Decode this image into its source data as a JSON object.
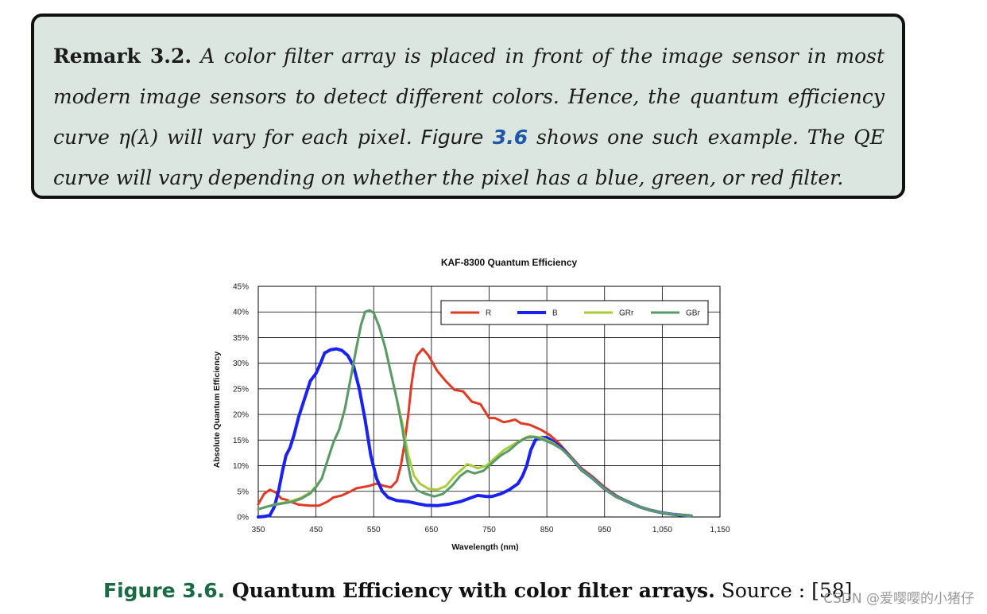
{
  "remark": {
    "label": "Remark 3.2.",
    "text_1": " A color filter array is placed in front of the image sensor in most modern image sensors to detect different colors. Hence, the quantum efficiency curve η(λ) will vary for each pixel. ",
    "figure_word": "Figure",
    "figure_num": " 3.6",
    "text_2": " shows one such example. The QE curve will vary depending on whether the pixel has a blue, green, or red filter."
  },
  "caption": {
    "label": "Figure 3.6.",
    "title": " Quantum Efficiency with color filter arrays.",
    "source": " Source : ",
    "ref": "[58]"
  },
  "watermark": "CSDN @爱嘤嘤的小猪仔",
  "chart_data": {
    "type": "line",
    "title": "KAF-8300 Quantum Efficiency",
    "xlabel": "Wavelength (nm)",
    "ylabel": "Absolute Quantum Efficiency",
    "xlim": [
      350,
      1150
    ],
    "ylim": [
      0,
      45
    ],
    "x_ticks": [
      "350",
      "450",
      "550",
      "650",
      "750",
      "850",
      "950",
      "1,050",
      "1,150"
    ],
    "y_ticks": [
      "0%",
      "5%",
      "10%",
      "15%",
      "20%",
      "25%",
      "30%",
      "35%",
      "40%",
      "45%"
    ],
    "grid": true,
    "legend_position": "top-right",
    "series": [
      {
        "name": "R",
        "color": "#e03a24",
        "points": [
          [
            350,
            2.5
          ],
          [
            360,
            4.5
          ],
          [
            370,
            5.3
          ],
          [
            380,
            4.8
          ],
          [
            390,
            3.6
          ],
          [
            400,
            3.3
          ],
          [
            410,
            2.8
          ],
          [
            420,
            2.4
          ],
          [
            440,
            2.2
          ],
          [
            455,
            2.2
          ],
          [
            470,
            3.0
          ],
          [
            480,
            3.8
          ],
          [
            495,
            4.2
          ],
          [
            510,
            5.0
          ],
          [
            520,
            5.6
          ],
          [
            540,
            6.0
          ],
          [
            555,
            6.5
          ],
          [
            570,
            6.0
          ],
          [
            580,
            5.8
          ],
          [
            590,
            7.0
          ],
          [
            597,
            10.0
          ],
          [
            603,
            14.0
          ],
          [
            610,
            20.0
          ],
          [
            615,
            25.5
          ],
          [
            620,
            29.5
          ],
          [
            625,
            31.5
          ],
          [
            635,
            32.8
          ],
          [
            645,
            31.5
          ],
          [
            660,
            28.5
          ],
          [
            675,
            26.5
          ],
          [
            690,
            24.8
          ],
          [
            705,
            24.5
          ],
          [
            720,
            22.5
          ],
          [
            735,
            22.0
          ],
          [
            750,
            19.3
          ],
          [
            760,
            19.3
          ],
          [
            775,
            18.5
          ],
          [
            785,
            18.7
          ],
          [
            795,
            19.0
          ],
          [
            805,
            18.3
          ],
          [
            820,
            18.0
          ],
          [
            840,
            17.0
          ],
          [
            855,
            16.0
          ],
          [
            870,
            14.5
          ],
          [
            890,
            12.0
          ],
          [
            910,
            9.5
          ],
          [
            930,
            7.8
          ],
          [
            950,
            5.8
          ],
          [
            970,
            4.2
          ],
          [
            990,
            3.0
          ],
          [
            1010,
            2.0
          ],
          [
            1030,
            1.3
          ],
          [
            1050,
            0.8
          ],
          [
            1070,
            0.5
          ],
          [
            1090,
            0.3
          ],
          [
            1100,
            0.2
          ]
        ]
      },
      {
        "name": "B",
        "color": "#1a22ef",
        "points": [
          [
            350,
            0.0
          ],
          [
            360,
            0.1
          ],
          [
            370,
            0.3
          ],
          [
            378,
            2.0
          ],
          [
            385,
            5.0
          ],
          [
            392,
            9.0
          ],
          [
            398,
            12.0
          ],
          [
            405,
            13.5
          ],
          [
            412,
            16.0
          ],
          [
            420,
            19.5
          ],
          [
            430,
            23.0
          ],
          [
            440,
            26.5
          ],
          [
            450,
            28.0
          ],
          [
            458,
            30.0
          ],
          [
            465,
            32.0
          ],
          [
            475,
            32.6
          ],
          [
            485,
            32.8
          ],
          [
            495,
            32.5
          ],
          [
            505,
            31.5
          ],
          [
            515,
            29.5
          ],
          [
            525,
            25.0
          ],
          [
            535,
            19.0
          ],
          [
            545,
            12.0
          ],
          [
            555,
            7.5
          ],
          [
            565,
            5.0
          ],
          [
            575,
            3.8
          ],
          [
            590,
            3.2
          ],
          [
            610,
            3.0
          ],
          [
            625,
            2.6
          ],
          [
            640,
            2.3
          ],
          [
            660,
            2.2
          ],
          [
            680,
            2.5
          ],
          [
            700,
            3.0
          ],
          [
            715,
            3.6
          ],
          [
            730,
            4.2
          ],
          [
            745,
            4.0
          ],
          [
            755,
            4.0
          ],
          [
            770,
            4.5
          ],
          [
            785,
            5.3
          ],
          [
            800,
            6.5
          ],
          [
            808,
            8.0
          ],
          [
            815,
            10.0
          ],
          [
            822,
            13.0
          ],
          [
            830,
            15.0
          ],
          [
            840,
            15.5
          ],
          [
            850,
            15.5
          ],
          [
            860,
            14.8
          ],
          [
            875,
            13.5
          ],
          [
            890,
            11.8
          ],
          [
            910,
            9.2
          ],
          [
            930,
            7.5
          ],
          [
            950,
            5.5
          ],
          [
            970,
            4.0
          ],
          [
            990,
            3.0
          ],
          [
            1010,
            2.0
          ],
          [
            1030,
            1.3
          ],
          [
            1050,
            0.8
          ],
          [
            1070,
            0.5
          ],
          [
            1090,
            0.3
          ],
          [
            1100,
            0.2
          ]
        ]
      },
      {
        "name": "GRr",
        "color": "#a8cc3c",
        "points": [
          [
            350,
            1.5
          ],
          [
            365,
            2.0
          ],
          [
            380,
            2.5
          ],
          [
            395,
            2.8
          ],
          [
            410,
            3.2
          ],
          [
            425,
            3.8
          ],
          [
            440,
            4.8
          ],
          [
            450,
            6.0
          ],
          [
            460,
            7.5
          ],
          [
            470,
            11.0
          ],
          [
            480,
            14.5
          ],
          [
            490,
            17.0
          ],
          [
            500,
            21.0
          ],
          [
            510,
            27.0
          ],
          [
            520,
            33.0
          ],
          [
            528,
            37.5
          ],
          [
            535,
            40.0
          ],
          [
            543,
            40.3
          ],
          [
            550,
            39.8
          ],
          [
            560,
            37.0
          ],
          [
            570,
            33.0
          ],
          [
            580,
            28.0
          ],
          [
            590,
            23.0
          ],
          [
            600,
            18.0
          ],
          [
            610,
            12.0
          ],
          [
            620,
            8.0
          ],
          [
            630,
            6.5
          ],
          [
            645,
            5.5
          ],
          [
            660,
            5.3
          ],
          [
            675,
            6.0
          ],
          [
            690,
            8.0
          ],
          [
            705,
            9.5
          ],
          [
            712,
            10.3
          ],
          [
            720,
            10.0
          ],
          [
            730,
            9.5
          ],
          [
            745,
            10.0
          ],
          [
            760,
            11.5
          ],
          [
            775,
            13.0
          ],
          [
            790,
            14.0
          ],
          [
            805,
            15.0
          ],
          [
            820,
            15.8
          ],
          [
            840,
            15.5
          ],
          [
            860,
            14.5
          ],
          [
            875,
            13.3
          ],
          [
            890,
            11.8
          ],
          [
            910,
            9.2
          ],
          [
            930,
            7.5
          ],
          [
            950,
            5.5
          ],
          [
            970,
            4.0
          ],
          [
            990,
            3.0
          ],
          [
            1010,
            2.0
          ],
          [
            1030,
            1.3
          ],
          [
            1050,
            0.8
          ],
          [
            1070,
            0.5
          ],
          [
            1090,
            0.3
          ],
          [
            1100,
            0.2
          ]
        ]
      },
      {
        "name": "GBr",
        "color": "#5a9a6a",
        "points": [
          [
            350,
            1.5
          ],
          [
            365,
            2.0
          ],
          [
            380,
            2.4
          ],
          [
            395,
            2.7
          ],
          [
            410,
            3.0
          ],
          [
            425,
            3.6
          ],
          [
            440,
            4.6
          ],
          [
            450,
            5.8
          ],
          [
            460,
            7.5
          ],
          [
            470,
            11.0
          ],
          [
            480,
            14.5
          ],
          [
            490,
            17.0
          ],
          [
            500,
            21.0
          ],
          [
            510,
            27.0
          ],
          [
            520,
            33.0
          ],
          [
            528,
            37.5
          ],
          [
            535,
            40.0
          ],
          [
            543,
            40.3
          ],
          [
            550,
            39.8
          ],
          [
            560,
            37.0
          ],
          [
            570,
            33.0
          ],
          [
            580,
            28.0
          ],
          [
            590,
            23.0
          ],
          [
            600,
            17.0
          ],
          [
            608,
            11.0
          ],
          [
            615,
            7.0
          ],
          [
            625,
            5.2
          ],
          [
            640,
            4.5
          ],
          [
            655,
            4.0
          ],
          [
            670,
            4.5
          ],
          [
            685,
            6.0
          ],
          [
            700,
            8.0
          ],
          [
            712,
            9.0
          ],
          [
            725,
            8.5
          ],
          [
            740,
            9.0
          ],
          [
            755,
            10.5
          ],
          [
            770,
            12.0
          ],
          [
            785,
            13.0
          ],
          [
            800,
            14.5
          ],
          [
            815,
            15.5
          ],
          [
            830,
            15.6
          ],
          [
            845,
            15.0
          ],
          [
            860,
            14.3
          ],
          [
            875,
            13.3
          ],
          [
            890,
            11.8
          ],
          [
            910,
            9.2
          ],
          [
            930,
            7.5
          ],
          [
            950,
            5.5
          ],
          [
            970,
            4.0
          ],
          [
            990,
            3.0
          ],
          [
            1010,
            2.0
          ],
          [
            1030,
            1.3
          ],
          [
            1050,
            0.8
          ],
          [
            1070,
            0.5
          ],
          [
            1090,
            0.3
          ],
          [
            1100,
            0.2
          ]
        ]
      }
    ]
  }
}
